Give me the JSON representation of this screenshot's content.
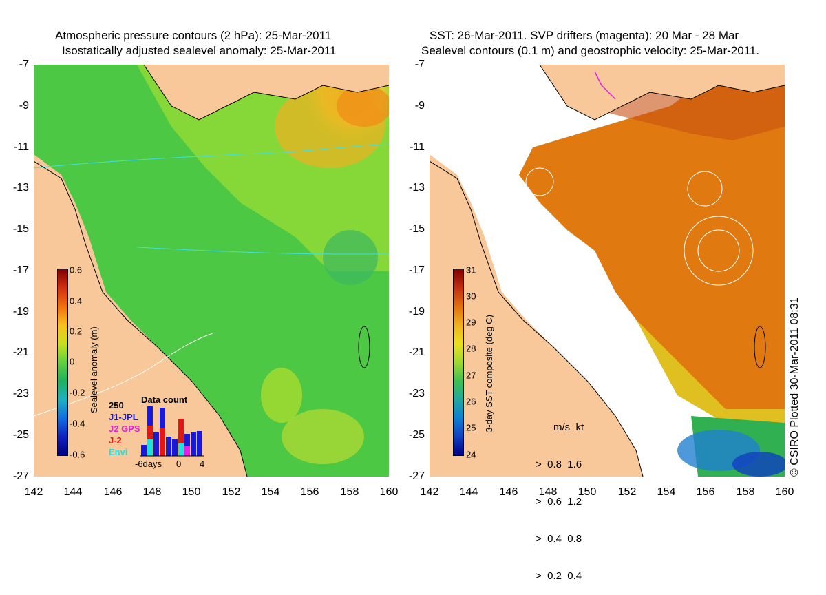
{
  "left_map": {
    "title_line1": "Atmospheric pressure contours (2 hPa): 25-Mar-2011",
    "title_line2": "Isostatically adjusted sealevel anomaly: 25-Mar-2011",
    "x_ticks": [
      "142",
      "144",
      "146",
      "148",
      "150",
      "152",
      "154",
      "156",
      "158",
      "160"
    ],
    "y_ticks": [
      "-7",
      "-9",
      "-11",
      "-13",
      "-15",
      "-17",
      "-19",
      "-21",
      "-23",
      "-25",
      "-27"
    ],
    "colorbar": {
      "label": "Sealevel anomaly (m)",
      "ticks": [
        "0.6",
        "0.4",
        "0.2",
        "0",
        "-0.2",
        "-0.4",
        "-0.6"
      ]
    },
    "data_count": {
      "title": "Data count",
      "max_label": "250",
      "x_labels": [
        "-6days",
        "0",
        "4"
      ],
      "series": [
        {
          "name": "J1-JPL",
          "color": "#1a1ad6"
        },
        {
          "name": "J2 GPS",
          "color": "#e81ee8"
        },
        {
          "name": "J-2",
          "color": "#e01818"
        },
        {
          "name": "Envi",
          "color": "#22e0e0"
        }
      ]
    }
  },
  "right_map": {
    "title_line1": "SST: 26-Mar-2011. SVP drifters (magenta): 20 Mar - 28 Mar",
    "title_line2": "Sealevel contours (0.1 m) and geostrophic velocity: 25-Mar-2011.",
    "x_ticks": [
      "142",
      "144",
      "146",
      "148",
      "150",
      "152",
      "154",
      "156",
      "158",
      "160"
    ],
    "y_ticks": [
      "-7",
      "-9",
      "-11",
      "-13",
      "-15",
      "-17",
      "-19",
      "-21",
      "-23",
      "-25",
      "-27"
    ],
    "colorbar": {
      "label": "3-day SST composite (deg C)",
      "ticks": [
        "31",
        "30",
        "29",
        "28",
        "27",
        "26",
        "25",
        "24"
      ]
    },
    "speed_legend": {
      "header": "m/s  kt",
      "rows": [
        "0.8  1.6",
        "0.6  1.2",
        "0.4  0.8",
        "0.2  0.4"
      ]
    }
  },
  "copyright": "© CSIRO Plotted 30-Mar-2011 08:31",
  "colors": {
    "land": "#f8c89a",
    "ocean_green": "#5ad048",
    "warm_sst": "#e07a10",
    "page_bg": "#ffffff"
  }
}
